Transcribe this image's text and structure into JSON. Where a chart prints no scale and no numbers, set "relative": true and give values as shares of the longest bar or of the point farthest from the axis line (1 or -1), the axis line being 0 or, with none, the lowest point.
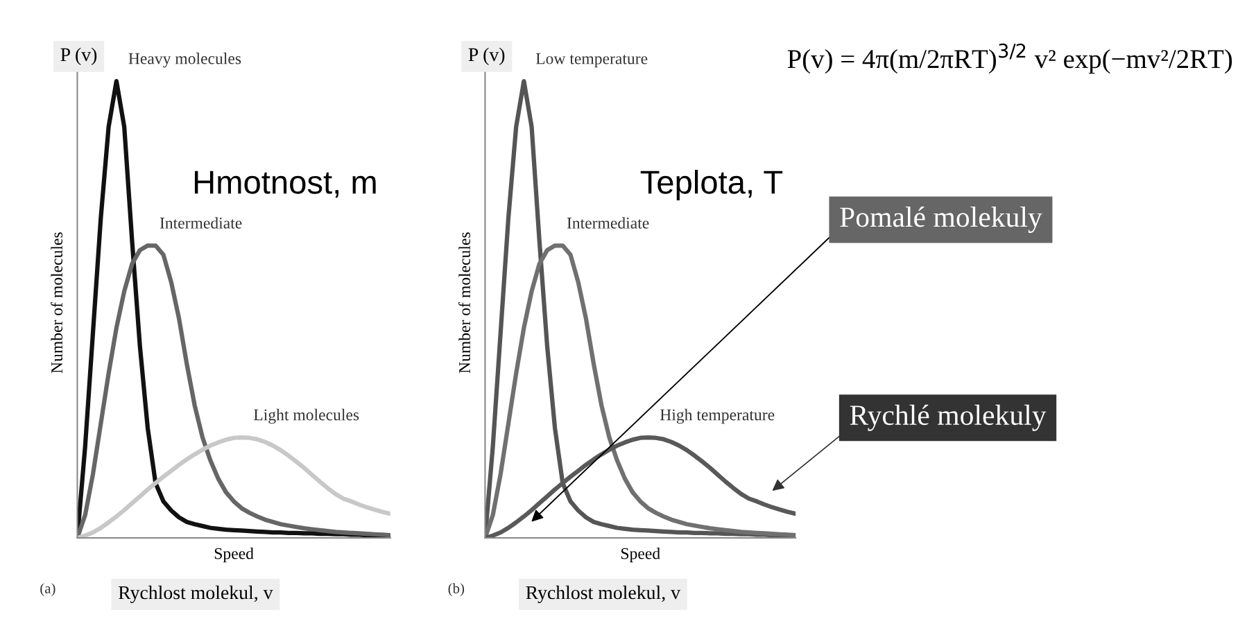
{
  "chart_data": [
    {
      "type": "line",
      "relative": true,
      "title": "Hmotnost, m",
      "xlabel": "Speed",
      "ylabel": "Number of molecules",
      "categories": [
        null,
        null,
        null,
        null,
        null,
        null,
        null,
        null,
        null,
        null,
        null,
        null,
        null,
        null,
        null,
        null,
        null,
        null,
        null,
        null,
        null,
        null,
        null,
        null,
        null,
        null,
        null,
        null,
        null,
        null,
        null,
        null,
        null,
        null,
        null,
        null,
        null,
        null,
        null,
        null,
        null
      ],
      "series": [
        {
          "name": "Heavy molecules",
          "color": "#111111",
          "values": [
            0,
            0.2,
            0.45,
            0.7,
            0.9,
            1.0,
            0.9,
            0.65,
            0.42,
            0.24,
            0.12,
            0.08,
            0.06,
            0.045,
            0.035,
            0.03,
            0.026,
            0.022,
            0.02,
            0.018,
            0.017,
            0.016,
            0.015,
            0.014,
            0.013,
            0.012,
            0.012,
            0.011,
            0.011,
            0.01,
            0.01,
            0.009,
            0.009,
            0.008,
            0.008,
            0.007,
            0.007,
            0.006,
            0.006,
            0.005,
            0.005
          ]
        },
        {
          "name": "Intermediate",
          "color": "#666666",
          "values": [
            0,
            0.05,
            0.14,
            0.25,
            0.36,
            0.46,
            0.54,
            0.6,
            0.63,
            0.64,
            0.64,
            0.62,
            0.56,
            0.48,
            0.38,
            0.29,
            0.22,
            0.17,
            0.13,
            0.1,
            0.08,
            0.065,
            0.055,
            0.047,
            0.04,
            0.035,
            0.03,
            0.027,
            0.024,
            0.021,
            0.019,
            0.017,
            0.015,
            0.013,
            0.012,
            0.011,
            0.01,
            0.009,
            0.008,
            0.007,
            0.006
          ]
        },
        {
          "name": "Light molecules",
          "color": "#c8c8c8",
          "values": [
            0,
            0.005,
            0.012,
            0.022,
            0.034,
            0.047,
            0.061,
            0.076,
            0.091,
            0.106,
            0.12,
            0.134,
            0.147,
            0.16,
            0.172,
            0.183,
            0.193,
            0.202,
            0.209,
            0.215,
            0.219,
            0.22,
            0.219,
            0.216,
            0.21,
            0.202,
            0.192,
            0.18,
            0.167,
            0.153,
            0.138,
            0.123,
            0.109,
            0.096,
            0.086,
            0.08,
            0.073,
            0.067,
            0.062,
            0.057,
            0.053
          ]
        }
      ],
      "annotations": [
        "P (v)",
        "(a)",
        "Rychlost molekul, v"
      ]
    },
    {
      "type": "line",
      "relative": true,
      "title": "Teplota, T",
      "xlabel": "Speed",
      "ylabel": "Number of molecules",
      "categories": [
        null,
        null,
        null,
        null,
        null,
        null,
        null,
        null,
        null,
        null,
        null,
        null,
        null,
        null,
        null,
        null,
        null,
        null,
        null,
        null,
        null,
        null,
        null,
        null,
        null,
        null,
        null,
        null,
        null,
        null,
        null,
        null,
        null,
        null,
        null,
        null,
        null,
        null,
        null,
        null,
        null
      ],
      "series": [
        {
          "name": "Low temperature",
          "color": "#555555",
          "values": [
            0,
            0.2,
            0.45,
            0.7,
            0.9,
            1.0,
            0.9,
            0.65,
            0.42,
            0.24,
            0.12,
            0.08,
            0.06,
            0.045,
            0.035,
            0.03,
            0.026,
            0.022,
            0.02,
            0.018,
            0.017,
            0.016,
            0.015,
            0.014,
            0.013,
            0.012,
            0.012,
            0.011,
            0.011,
            0.01,
            0.01,
            0.009,
            0.009,
            0.008,
            0.008,
            0.007,
            0.007,
            0.006,
            0.006,
            0.005,
            0.005
          ]
        },
        {
          "name": "Intermediate",
          "color": "#707070",
          "values": [
            0,
            0.05,
            0.14,
            0.25,
            0.36,
            0.46,
            0.54,
            0.6,
            0.63,
            0.64,
            0.64,
            0.62,
            0.56,
            0.48,
            0.38,
            0.29,
            0.22,
            0.17,
            0.13,
            0.1,
            0.08,
            0.065,
            0.055,
            0.047,
            0.04,
            0.035,
            0.03,
            0.027,
            0.024,
            0.021,
            0.019,
            0.017,
            0.015,
            0.013,
            0.012,
            0.011,
            0.01,
            0.009,
            0.008,
            0.007,
            0.006
          ]
        },
        {
          "name": "High temperature",
          "color": "#595959",
          "values": [
            0,
            0.005,
            0.012,
            0.022,
            0.034,
            0.047,
            0.061,
            0.076,
            0.091,
            0.106,
            0.12,
            0.134,
            0.147,
            0.16,
            0.172,
            0.183,
            0.193,
            0.202,
            0.209,
            0.215,
            0.219,
            0.22,
            0.219,
            0.216,
            0.21,
            0.202,
            0.192,
            0.18,
            0.167,
            0.153,
            0.138,
            0.123,
            0.109,
            0.096,
            0.086,
            0.08,
            0.073,
            0.067,
            0.062,
            0.057,
            0.053
          ]
        }
      ],
      "annotations": [
        "P (v)",
        "(b)",
        "Rychlost molekul, v",
        "P(v) = 4π(m/2πRT)$^{3/2}$ v² exp(−mv²/2RT)",
        "Pomalé molekuly",
        "Rychlé molekuly"
      ]
    }
  ]
}
